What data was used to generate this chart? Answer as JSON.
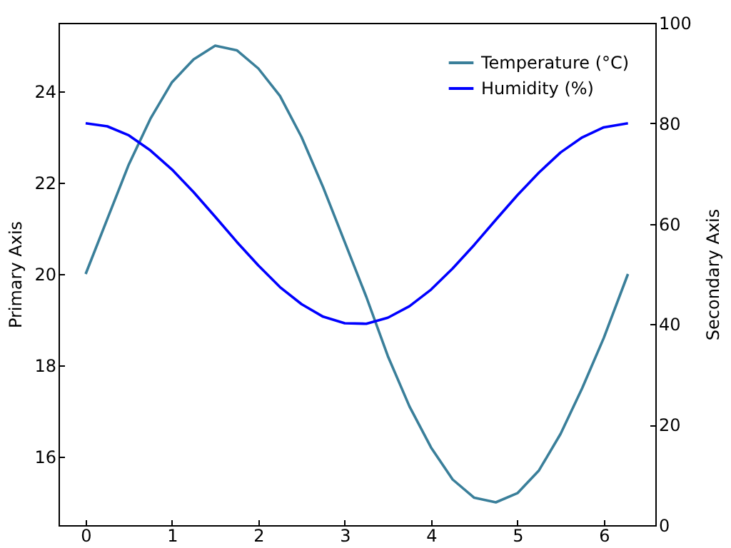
{
  "chart_data": {
    "type": "line",
    "ylabel": "Primary Axis",
    "y2label": "Secondary Axis",
    "x": [
      0,
      0.25,
      0.5,
      0.75,
      1,
      1.25,
      1.5,
      1.75,
      2,
      2.25,
      2.5,
      2.75,
      3,
      3.25,
      3.5,
      3.75,
      4,
      4.25,
      4.5,
      4.75,
      5,
      5.25,
      5.5,
      5.75,
      6,
      6.28
    ],
    "series": [
      {
        "name": "Temperature (°C)",
        "color": "#3a7f9a",
        "values": [
          20,
          21.2,
          22.4,
          23.4,
          24.2,
          24.7,
          25,
          24.9,
          24.5,
          23.9,
          23,
          21.9,
          20.7,
          19.5,
          18.2,
          17.1,
          16.2,
          15.5,
          15.1,
          15,
          15.2,
          15.7,
          16.5,
          17.5,
          18.6,
          20
        ]
      },
      {
        "name": "Humidity (%)",
        "color": "#0000ff",
        "axis": "y2",
        "values": [
          80,
          79.4,
          77.6,
          74.6,
          70.8,
          66.3,
          61.4,
          56.4,
          51.7,
          47.4,
          44,
          41.5,
          40.2,
          40.1,
          41.3,
          43.6,
          46.9,
          51.1,
          55.8,
          60.8,
          65.7,
          70.2,
          74.2,
          77.2,
          79.2,
          80
        ]
      }
    ],
    "xlim": [
      -0.314,
      6.597
    ],
    "xticks": [
      0,
      1,
      2,
      3,
      4,
      5,
      6
    ],
    "ylim": [
      14.5,
      25.5
    ],
    "yticks": [
      16,
      18,
      20,
      22,
      24
    ],
    "y2lim": [
      0,
      100
    ],
    "y2ticks": [
      0,
      20,
      40,
      60,
      80,
      100
    ],
    "grid": false,
    "legend": "top right",
    "line_style": "solid",
    "marker": "none"
  }
}
